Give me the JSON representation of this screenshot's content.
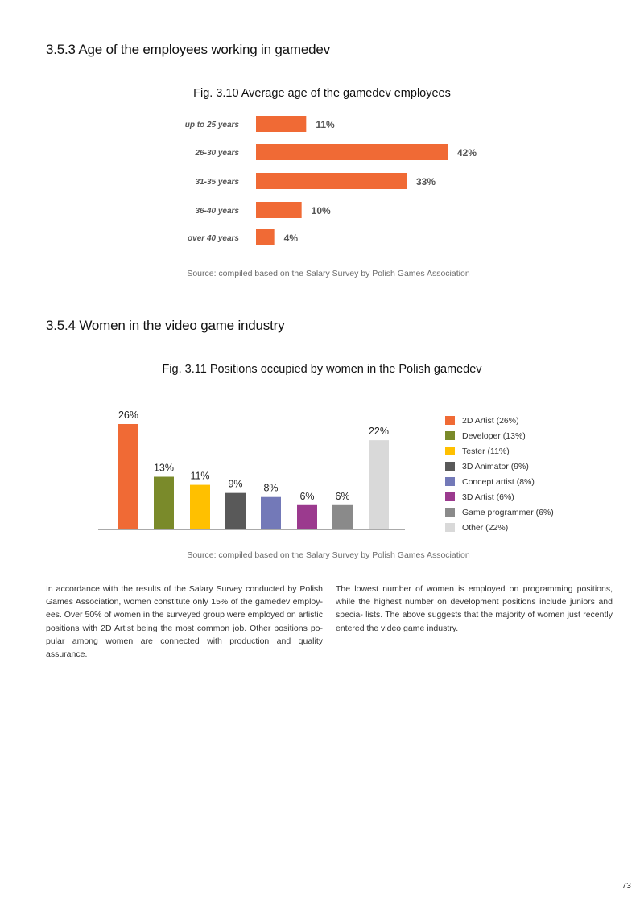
{
  "sections": {
    "s353_title": "3.5.3 Age of the employees working in gamedev",
    "s354_title": "3.5.4 Women in the video game industry"
  },
  "figures": {
    "fig310_title": "Fig. 3.10 Average age of the gamedev employees",
    "fig311_title": "Fig. 3.11 Positions occupied by women in the Polish gamedev",
    "source_1": "Source: compiled based on the Salary Survey by Polish Games Association",
    "source_2": "Source: compiled based on the Salary Survey by Polish Games Association"
  },
  "chart_data": [
    {
      "type": "bar",
      "orientation": "horizontal",
      "title": "Fig. 3.10 Average age of the gamedev employees",
      "categories": [
        "up to 25 years",
        "26-30 years",
        "31-35 years",
        "36-40 years",
        "over 40 years"
      ],
      "values": [
        11,
        42,
        33,
        10,
        4
      ],
      "value_labels": [
        "11%",
        "42%",
        "33%",
        "10%",
        "4%"
      ],
      "unit": "%",
      "color": "#f06a35",
      "xlim": [
        0,
        42
      ]
    },
    {
      "type": "bar",
      "orientation": "vertical",
      "title": "Fig. 3.11 Positions occupied by women in the Polish gamedev",
      "categories": [
        "2D Artist",
        "Developer",
        "Tester",
        "3D Animator",
        "Concept artist",
        "3D Artist",
        "Game programmer",
        "Other"
      ],
      "values": [
        26,
        13,
        11,
        9,
        8,
        6,
        6,
        22
      ],
      "value_labels": [
        "26%",
        "13%",
        "11%",
        "9%",
        "8%",
        "6%",
        "6%",
        "22%"
      ],
      "colors": [
        "#f06a35",
        "#7a8a2a",
        "#ffc000",
        "#595959",
        "#7379b8",
        "#9b3a8e",
        "#8a8a8a",
        "#d9d9d9"
      ],
      "legend": [
        "2D Artist (26%)",
        "Developer (13%)",
        "Tester (11%)",
        "3D Animator (9%)",
        "Concept artist (8%)",
        "3D Artist (6%)",
        "Game programmer (6%)",
        "Other (22%)"
      ],
      "legend_position": "right",
      "ylim": [
        0,
        26
      ]
    }
  ],
  "body_text": {
    "left": "In accordance with the results of the Salary Survey conducted by Polish Games Association, women constitute only 15% of the gamedev employ- ees. Over 50% of women in the surveyed group were employed on artistic positions with 2D Artist being the most common job. Other positions po- pular among women are connected with production and quality assurance.",
    "right": "The lowest number of women is employed on programming positions, while the highest number on development positions include juniors and specia- lists. The above suggests that the majority of women just recently entered the video game industry."
  },
  "page_number": "73"
}
